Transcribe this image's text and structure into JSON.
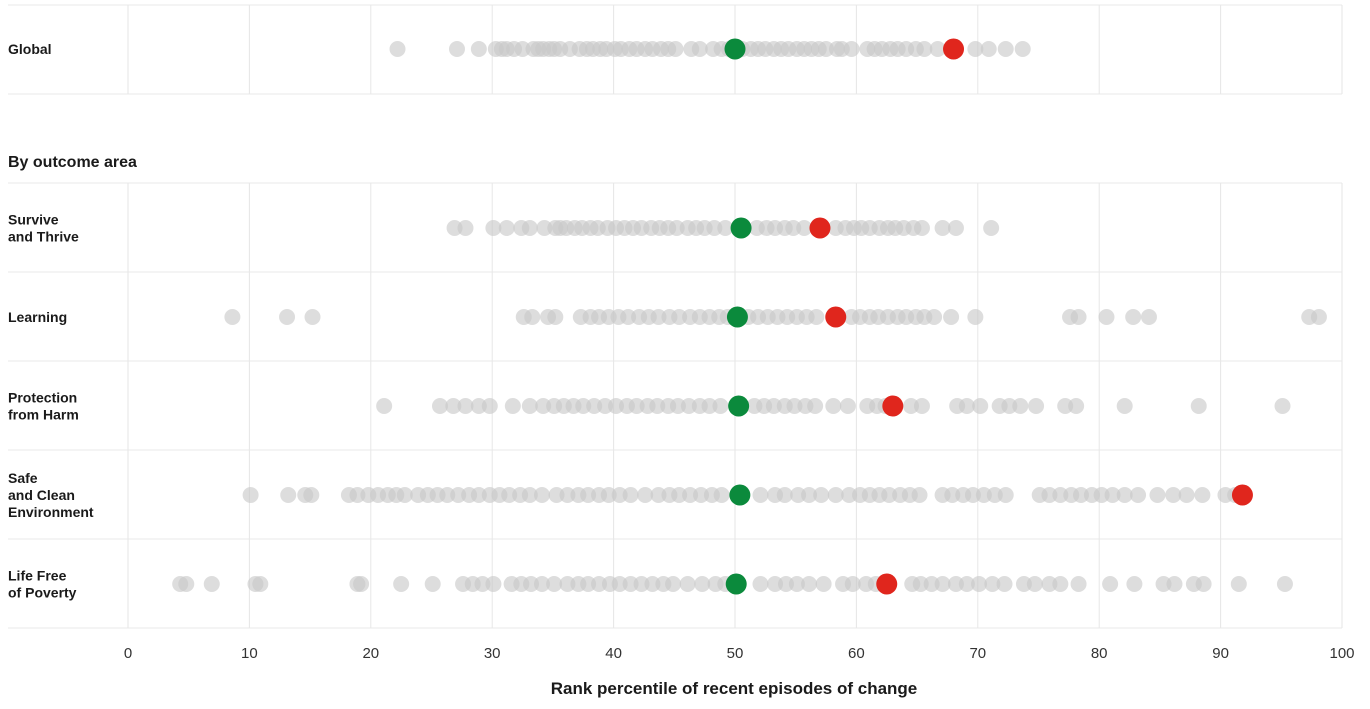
{
  "chart_data": {
    "type": "scatter",
    "section_title": "By outcome area",
    "xlabel": "Rank percentile of recent episodes of change",
    "xlim": [
      0,
      100
    ],
    "xticks": [
      0,
      10,
      20,
      30,
      40,
      50,
      60,
      70,
      80,
      90,
      100
    ],
    "grid": true,
    "colors": {
      "background_dots": "#c8c8c8",
      "median_marker": "#0b8a3c",
      "highlight_marker": "#e0261d",
      "gridline": "#e6e6e6",
      "row_divider": "#e8e8e8"
    },
    "rows": [
      {
        "label": "Global",
        "median": 50,
        "highlight": 68,
        "values": [
          22.2,
          27.1,
          28.9,
          30.3,
          30.8,
          31.2,
          31.8,
          32.5,
          33.4,
          33.8,
          34.2,
          34.7,
          35.1,
          35.6,
          36.4,
          37.2,
          37.8,
          38.3,
          38.9,
          39.4,
          40.1,
          40.6,
          41.3,
          41.9,
          42.6,
          43.2,
          43.9,
          44.5,
          45.1,
          46.4,
          47.1,
          48.2,
          48.9,
          49.5,
          50.6,
          51.3,
          51.9,
          52.5,
          53.2,
          53.8,
          54.4,
          55.1,
          55.7,
          56.3,
          56.9,
          57.5,
          58.4,
          58.8,
          59.6,
          60.9,
          61.5,
          62.1,
          62.8,
          63.4,
          64.1,
          64.9,
          65.6,
          66.7,
          69.8,
          70.9,
          72.3,
          73.7
        ]
      },
      {
        "label": "Survive and Thrive",
        "median": 50.5,
        "highlight": 57,
        "values": [
          26.9,
          27.8,
          30.1,
          31.2,
          32.4,
          33.1,
          34.3,
          35.2,
          35.6,
          36.1,
          36.8,
          37.4,
          38.1,
          38.7,
          39.5,
          40.2,
          40.9,
          41.6,
          42.3,
          43.1,
          43.8,
          44.5,
          45.2,
          46.1,
          46.8,
          47.5,
          48.3,
          49.2,
          51.8,
          52.6,
          53.3,
          54.1,
          54.8,
          55.7,
          58.3,
          59.1,
          59.8,
          60.4,
          61.1,
          61.9,
          62.6,
          63.2,
          63.9,
          64.7,
          65.4,
          67.1,
          68.2,
          71.1
        ]
      },
      {
        "label": "Learning",
        "median": 50.2,
        "highlight": 58.3,
        "values": [
          8.6,
          13.1,
          15.2,
          32.6,
          33.3,
          34.6,
          35.2,
          37.3,
          38.1,
          38.8,
          39.6,
          40.4,
          41.2,
          42.1,
          42.9,
          43.7,
          44.6,
          45.4,
          46.3,
          47.1,
          47.9,
          48.7,
          49.4,
          51.1,
          51.9,
          52.7,
          53.5,
          54.3,
          55.1,
          55.9,
          56.7,
          59.6,
          60.3,
          61.1,
          61.8,
          62.6,
          63.4,
          64.1,
          64.9,
          65.6,
          66.4,
          67.8,
          69.8,
          77.6,
          78.3,
          80.6,
          82.8,
          84.1,
          97.3,
          98.1
        ]
      },
      {
        "label": "Protection from Harm",
        "median": 50.3,
        "highlight": 63,
        "values": [
          21.1,
          25.7,
          26.8,
          27.8,
          28.9,
          29.8,
          31.7,
          33.1,
          34.2,
          35.1,
          35.9,
          36.7,
          37.5,
          38.4,
          39.3,
          40.2,
          41.1,
          41.9,
          42.8,
          43.6,
          44.5,
          45.3,
          46.2,
          47.1,
          47.9,
          48.8,
          51.6,
          52.4,
          53.2,
          54.1,
          54.9,
          55.8,
          56.6,
          58.1,
          59.3,
          60.9,
          61.7,
          62.4,
          64.5,
          65.4,
          68.3,
          69.1,
          70.2,
          71.8,
          72.6,
          73.5,
          74.8,
          77.2,
          78.1,
          82.1,
          88.2,
          95.1
        ]
      },
      {
        "label": "Safe and Clean Environment",
        "median": 50.4,
        "highlight": 91.8,
        "values": [
          10.1,
          13.2,
          14.6,
          15.1,
          18.2,
          18.9,
          19.8,
          20.6,
          21.4,
          22.1,
          22.8,
          23.9,
          24.7,
          25.5,
          26.3,
          27.2,
          28.1,
          28.9,
          29.8,
          30.6,
          31.4,
          32.3,
          33.1,
          34.1,
          35.3,
          36.2,
          37.1,
          37.9,
          38.8,
          39.6,
          40.5,
          41.4,
          42.6,
          43.7,
          44.6,
          45.4,
          46.3,
          47.2,
          48.1,
          48.9,
          52.1,
          53.3,
          54.1,
          55.2,
          56.1,
          57.1,
          58.3,
          59.4,
          60.3,
          61.1,
          61.9,
          62.7,
          63.6,
          64.4,
          65.2,
          67.1,
          67.9,
          68.8,
          69.6,
          70.5,
          71.4,
          72.3,
          75.1,
          75.9,
          76.8,
          77.7,
          78.5,
          79.4,
          80.2,
          81.1,
          82.1,
          83.2,
          84.8,
          86.1,
          87.2,
          88.5,
          90.4,
          91.2
        ]
      },
      {
        "label": "Life Free of Poverty",
        "median": 50.1,
        "highlight": 62.5,
        "values": [
          4.3,
          4.8,
          6.9,
          10.5,
          10.9,
          18.9,
          19.2,
          22.5,
          25.1,
          27.6,
          28.4,
          29.2,
          30.1,
          31.6,
          32.4,
          33.2,
          34.1,
          35.1,
          36.2,
          37.1,
          37.9,
          38.8,
          39.7,
          40.5,
          41.4,
          42.3,
          43.2,
          44.1,
          44.9,
          46.1,
          47.3,
          48.4,
          49.2,
          52.1,
          53.3,
          54.2,
          55.1,
          56.1,
          57.3,
          58.9,
          59.7,
          60.8,
          61.6,
          64.6,
          65.3,
          66.2,
          67.1,
          68.2,
          69.1,
          70.1,
          71.2,
          72.2,
          73.8,
          74.7,
          75.9,
          76.8,
          78.3,
          80.9,
          82.9,
          85.3,
          86.2,
          87.8,
          88.6,
          91.5,
          95.3
        ]
      }
    ]
  }
}
